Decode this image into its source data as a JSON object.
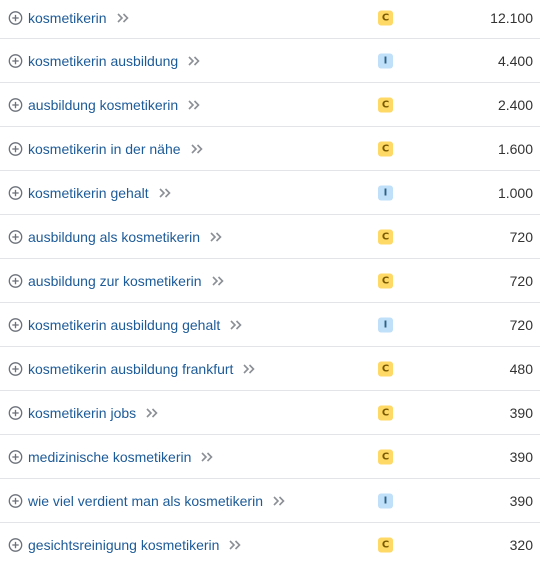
{
  "keywords": [
    {
      "keyword": "kosmetikerin",
      "intent": "C",
      "volume": "12.100"
    },
    {
      "keyword": "kosmetikerin ausbildung",
      "intent": "I",
      "volume": "4.400"
    },
    {
      "keyword": "ausbildung kosmetikerin",
      "intent": "C",
      "volume": "2.400"
    },
    {
      "keyword": "kosmetikerin in der nähe",
      "intent": "C",
      "volume": "1.600"
    },
    {
      "keyword": "kosmetikerin gehalt",
      "intent": "I",
      "volume": "1.000"
    },
    {
      "keyword": "ausbildung als kosmetikerin",
      "intent": "C",
      "volume": "720"
    },
    {
      "keyword": "ausbildung zur kosmetikerin",
      "intent": "C",
      "volume": "720"
    },
    {
      "keyword": "kosmetikerin ausbildung gehalt",
      "intent": "I",
      "volume": "720"
    },
    {
      "keyword": "kosmetikerin ausbildung frankfurt",
      "intent": "C",
      "volume": "480"
    },
    {
      "keyword": "kosmetikerin jobs",
      "intent": "C",
      "volume": "390"
    },
    {
      "keyword": "medizinische kosmetikerin",
      "intent": "C",
      "volume": "390"
    },
    {
      "keyword": "wie viel verdient man als kosmetikerin",
      "intent": "I",
      "volume": "390"
    },
    {
      "keyword": "gesichtsreinigung kosmetikerin",
      "intent": "C",
      "volume": "320"
    }
  ],
  "icons": {
    "add": "plus-circle-icon",
    "open": "double-chevron-right-icon"
  },
  "colors": {
    "link": "#1d5b98",
    "intent_commercial": "#ffd966",
    "intent_informational": "#bfe0f8"
  }
}
